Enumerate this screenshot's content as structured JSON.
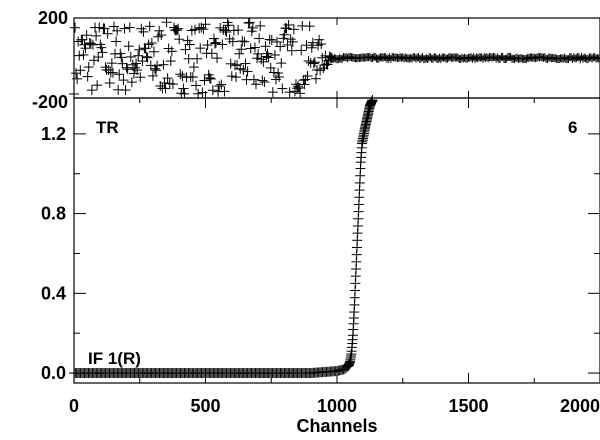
{
  "chart_data": [
    {
      "type": "scatter",
      "panel": "top",
      "title": "",
      "xlabel": "",
      "ylabel": "",
      "xlim": [
        0,
        2000
      ],
      "ylim": [
        -200,
        200
      ],
      "y_ticks": [
        200,
        -200
      ],
      "y_tick_labels": [
        "200",
        "-200"
      ],
      "marker": "+",
      "description_values": {
        "noisy_region_channels": [
          0,
          880
        ],
        "noisy_amplitude_range": [
          -180,
          180
        ],
        "transition_channels": [
          880,
          980
        ],
        "steady_value": 0,
        "steady_region_channels": [
          980,
          2000
        ]
      }
    },
    {
      "type": "scatter",
      "panel": "bottom",
      "title": "",
      "xlabel": "Channels",
      "ylabel": "",
      "xlim": [
        0,
        2000
      ],
      "ylim": [
        -0.05,
        1.38
      ],
      "x_ticks": [
        0,
        500,
        1000,
        1500,
        2000
      ],
      "x_tick_labels": [
        "0",
        "500",
        "1000",
        "1500",
        "2000"
      ],
      "y_ticks": [
        0.0,
        0.4,
        0.8,
        1.2
      ],
      "y_tick_labels": [
        "0.0",
        "0.4",
        "0.8",
        "1.2"
      ],
      "marker": "+",
      "annotations": {
        "top_left": "TR",
        "top_right": "6",
        "bottom_left": "IF 1(R)"
      },
      "points": [
        [
          0,
          0.0
        ],
        [
          100,
          0.0
        ],
        [
          200,
          0.0
        ],
        [
          300,
          0.0
        ],
        [
          400,
          0.0
        ],
        [
          500,
          0.0
        ],
        [
          600,
          0.0
        ],
        [
          700,
          0.0
        ],
        [
          800,
          0.0
        ],
        [
          900,
          0.0
        ],
        [
          1000,
          0.01
        ],
        [
          1030,
          0.02
        ],
        [
          1045,
          0.04
        ],
        [
          1050,
          0.06
        ],
        [
          1055,
          0.1
        ],
        [
          1060,
          0.18
        ],
        [
          1065,
          0.3
        ],
        [
          1070,
          0.45
        ],
        [
          1075,
          0.6
        ],
        [
          1080,
          0.75
        ],
        [
          1085,
          0.9
        ],
        [
          1090,
          1.05
        ],
        [
          1095,
          1.15
        ],
        [
          1105,
          1.22
        ],
        [
          1115,
          1.28
        ],
        [
          1125,
          1.34
        ],
        [
          1135,
          1.37
        ]
      ]
    }
  ]
}
